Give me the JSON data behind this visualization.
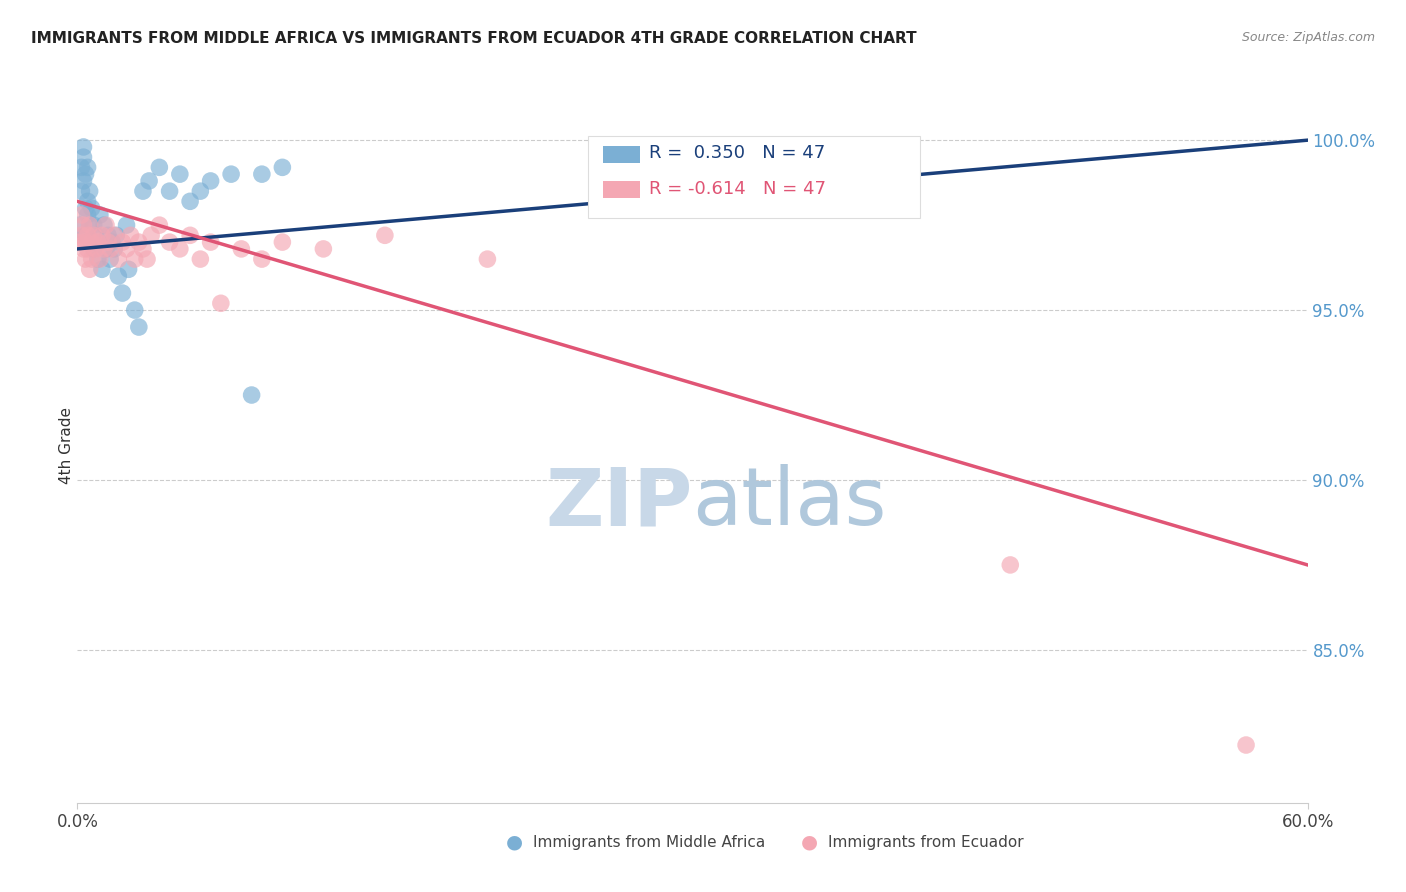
{
  "title": "IMMIGRANTS FROM MIDDLE AFRICA VS IMMIGRANTS FROM ECUADOR 4TH GRADE CORRELATION CHART",
  "source": "Source: ZipAtlas.com",
  "ylabel": "4th Grade",
  "xmin": 0.0,
  "xmax": 0.6,
  "ymin": 80.5,
  "ymax": 101.5,
  "blue_R": 0.35,
  "blue_N": 47,
  "pink_R": -0.614,
  "pink_N": 47,
  "blue_color": "#7BAFD4",
  "pink_color": "#F4A7B3",
  "blue_line_color": "#1A3F7A",
  "pink_line_color": "#E05575",
  "legend_label_blue": "Immigrants from Middle Africa",
  "legend_label_pink": "Immigrants from Ecuador",
  "watermark_zip_color": "#C8D8E8",
  "watermark_atlas_color": "#B0C8DC",
  "yticks": [
    85.0,
    90.0,
    95.0,
    100.0
  ],
  "blue_x": [
    0.001,
    0.002,
    0.002,
    0.003,
    0.003,
    0.003,
    0.004,
    0.004,
    0.004,
    0.005,
    0.005,
    0.005,
    0.006,
    0.006,
    0.007,
    0.007,
    0.008,
    0.008,
    0.009,
    0.01,
    0.011,
    0.012,
    0.013,
    0.014,
    0.015,
    0.016,
    0.017,
    0.018,
    0.019,
    0.02,
    0.022,
    0.024,
    0.025,
    0.028,
    0.03,
    0.032,
    0.035,
    0.04,
    0.045,
    0.05,
    0.055,
    0.06,
    0.065,
    0.075,
    0.085,
    0.09,
    0.1
  ],
  "blue_y": [
    97.5,
    98.5,
    99.2,
    98.8,
    99.5,
    99.8,
    97.2,
    98.0,
    99.0,
    97.8,
    98.2,
    99.2,
    97.5,
    98.5,
    97.0,
    98.0,
    96.8,
    97.5,
    97.2,
    96.5,
    97.8,
    96.2,
    97.5,
    96.8,
    97.2,
    96.5,
    97.0,
    96.8,
    97.2,
    96.0,
    95.5,
    97.5,
    96.2,
    95.0,
    94.5,
    98.5,
    98.8,
    99.2,
    98.5,
    99.0,
    98.2,
    98.5,
    98.8,
    99.0,
    92.5,
    99.0,
    99.2
  ],
  "pink_x": [
    0.001,
    0.002,
    0.002,
    0.003,
    0.003,
    0.004,
    0.004,
    0.005,
    0.005,
    0.006,
    0.006,
    0.007,
    0.007,
    0.008,
    0.009,
    0.01,
    0.011,
    0.012,
    0.013,
    0.014,
    0.015,
    0.016,
    0.018,
    0.02,
    0.022,
    0.024,
    0.026,
    0.028,
    0.03,
    0.032,
    0.034,
    0.036,
    0.04,
    0.045,
    0.05,
    0.055,
    0.06,
    0.065,
    0.07,
    0.08,
    0.09,
    0.1,
    0.12,
    0.15,
    0.2,
    0.455,
    0.57
  ],
  "pink_y": [
    97.0,
    97.8,
    97.2,
    96.8,
    97.5,
    97.0,
    96.5,
    97.2,
    96.8,
    97.5,
    96.2,
    97.0,
    96.5,
    97.2,
    96.8,
    97.0,
    96.5,
    97.2,
    96.8,
    97.5,
    97.0,
    96.8,
    97.2,
    96.5,
    97.0,
    96.8,
    97.2,
    96.5,
    97.0,
    96.8,
    96.5,
    97.2,
    97.5,
    97.0,
    96.8,
    97.2,
    96.5,
    97.0,
    95.2,
    96.8,
    96.5,
    97.0,
    96.8,
    97.2,
    96.5,
    87.5,
    82.2
  ]
}
